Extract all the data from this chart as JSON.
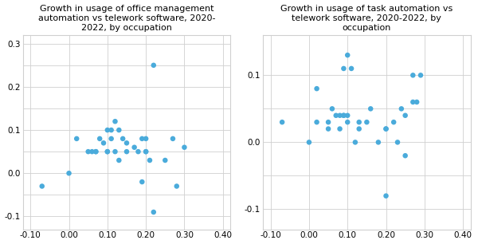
{
  "title1": "Growth in usage of office management\nautomation vs telework software, 2020-\n2022, by occupation",
  "title2": "Growth in usage of task automation vs\ntelework software, 2020-2022, by\noccupation",
  "scatter1_x": [
    -0.07,
    0.0,
    0.02,
    0.05,
    0.06,
    0.07,
    0.07,
    0.08,
    0.09,
    0.1,
    0.1,
    0.1,
    0.11,
    0.11,
    0.12,
    0.12,
    0.13,
    0.13,
    0.14,
    0.15,
    0.15,
    0.17,
    0.18,
    0.19,
    0.19,
    0.2,
    0.2,
    0.2,
    0.21,
    0.22,
    0.22,
    0.25,
    0.27,
    0.28,
    0.3
  ],
  "scatter1_y": [
    -0.03,
    0.0,
    0.08,
    0.05,
    0.05,
    0.05,
    0.05,
    0.08,
    0.07,
    0.05,
    0.1,
    0.05,
    0.08,
    0.1,
    0.12,
    0.05,
    0.03,
    0.1,
    0.08,
    0.07,
    0.05,
    0.06,
    0.05,
    0.08,
    -0.02,
    0.05,
    0.08,
    0.05,
    0.03,
    -0.09,
    0.25,
    0.03,
    0.08,
    -0.03,
    0.06
  ],
  "scatter2_x": [
    -0.07,
    0.0,
    0.02,
    0.02,
    0.05,
    0.05,
    0.06,
    0.07,
    0.08,
    0.08,
    0.09,
    0.09,
    0.09,
    0.1,
    0.1,
    0.1,
    0.11,
    0.12,
    0.13,
    0.13,
    0.15,
    0.16,
    0.18,
    0.2,
    0.2,
    0.2,
    0.22,
    0.23,
    0.24,
    0.25,
    0.25,
    0.27,
    0.27,
    0.28,
    0.29
  ],
  "scatter2_y": [
    0.03,
    0.0,
    0.03,
    0.08,
    0.02,
    0.03,
    0.05,
    0.04,
    0.02,
    0.04,
    0.04,
    0.04,
    0.11,
    0.03,
    0.04,
    0.13,
    0.11,
    0.0,
    0.02,
    0.03,
    0.03,
    0.05,
    0.0,
    0.02,
    0.02,
    -0.08,
    0.03,
    0.0,
    0.05,
    -0.02,
    0.04,
    0.06,
    0.1,
    0.06,
    0.1
  ],
  "dot_color": "#4aabdb",
  "xlim": [
    -0.12,
    0.42
  ],
  "ylim1": [
    -0.13,
    0.32
  ],
  "ylim2": [
    -0.13,
    0.16
  ],
  "xticks": [
    -0.1,
    0.0,
    0.1,
    0.2,
    0.3,
    0.4
  ],
  "yticks1": [
    -0.1,
    0.0,
    0.1,
    0.2,
    0.3
  ],
  "yticks2": [
    -0.1,
    0.0,
    0.1
  ],
  "minor_yticks1": [
    -0.05,
    0.05,
    0.15,
    0.25
  ],
  "minor_yticks2": [
    -0.05,
    0.05
  ],
  "title_fontsize": 8.0,
  "tick_fontsize": 7.5,
  "dot_size": 22,
  "background_color": "#ffffff",
  "grid_color": "#d0d0d0"
}
